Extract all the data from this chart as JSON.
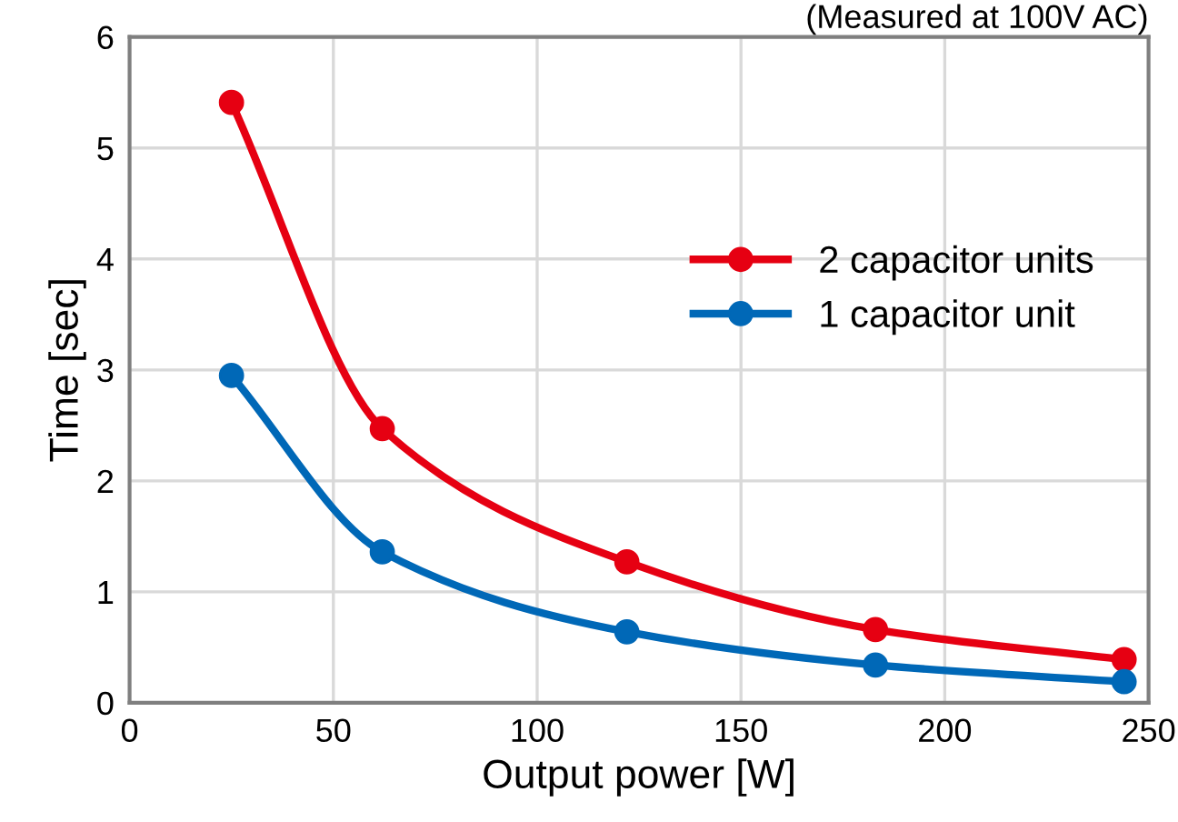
{
  "chart_data": {
    "type": "line",
    "xlabel": "Output power [W]",
    "ylabel": "Time [sec]",
    "annotations": [
      "(Measured at 100V AC)"
    ],
    "series": [
      {
        "name": "2 capacitor units",
        "color": "#e60012",
        "x": [
          25,
          62,
          122,
          183,
          244
        ],
        "values": [
          5.41,
          2.47,
          1.27,
          0.66,
          0.39
        ]
      },
      {
        "name": "1 capacitor unit",
        "color": "#0068b7",
        "x": [
          25,
          62,
          122,
          183,
          244
        ],
        "values": [
          2.95,
          1.36,
          0.64,
          0.34,
          0.19
        ]
      }
    ],
    "xlim": [
      0,
      250
    ],
    "xticks": [
      0,
      50,
      100,
      150,
      200,
      250
    ],
    "ylim": [
      0,
      6
    ],
    "yticks": [
      0,
      1,
      2,
      3,
      4,
      5,
      6
    ],
    "grid": true,
    "legend": "right",
    "marker": "circle",
    "line_style": "solid"
  }
}
